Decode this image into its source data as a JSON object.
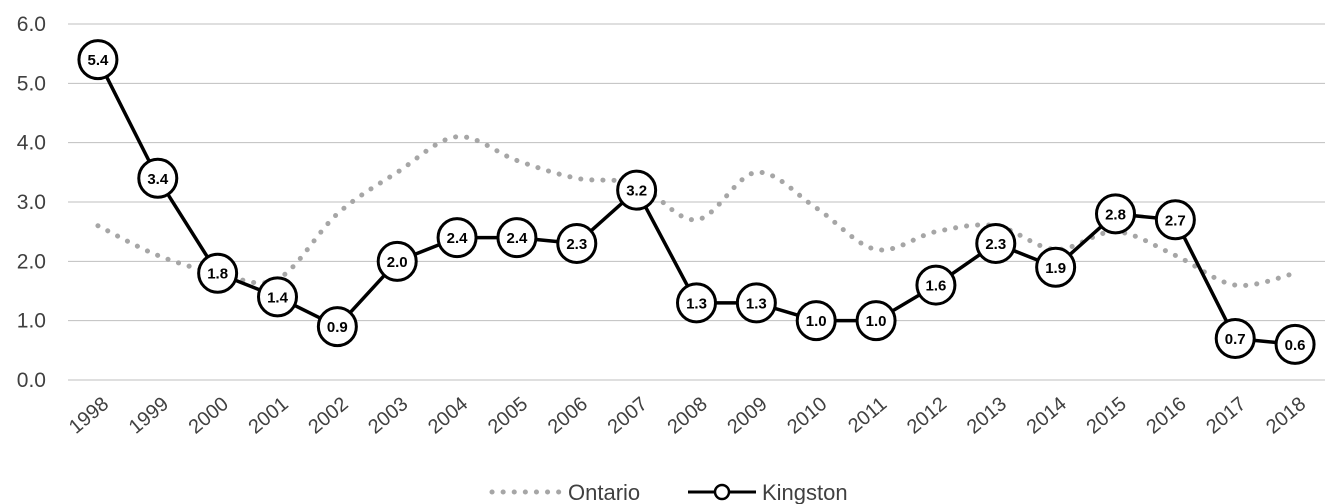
{
  "chart_data": {
    "type": "line",
    "x": [
      "1998",
      "1999",
      "2000",
      "2001",
      "2002",
      "2003",
      "2004",
      "2005",
      "2006",
      "2007",
      "2008",
      "2009",
      "2010",
      "2011",
      "2012",
      "2013",
      "2014",
      "2015",
      "2016",
      "2017",
      "2018"
    ],
    "ylim": [
      0,
      6
    ],
    "yticks": [
      "0.0",
      "1.0",
      "2.0",
      "3.0",
      "4.0",
      "5.0",
      "6.0"
    ],
    "grid": true,
    "legend_position": "bottom",
    "series": [
      {
        "name": "Ontario",
        "style": "dotted",
        "color": "#a6a6a6",
        "values": [
          2.6,
          2.1,
          1.8,
          1.7,
          2.8,
          3.5,
          4.1,
          3.7,
          3.4,
          3.3,
          2.7,
          3.5,
          2.9,
          2.2,
          2.5,
          2.6,
          2.2,
          2.5,
          2.1,
          1.6,
          1.8
        ]
      },
      {
        "name": "Kingston",
        "style": "solid-markers",
        "color": "#000000",
        "values": [
          5.4,
          3.4,
          1.8,
          1.4,
          0.9,
          2.0,
          2.4,
          2.4,
          2.3,
          3.2,
          1.3,
          1.3,
          1.0,
          1.0,
          1.6,
          2.3,
          1.9,
          2.8,
          2.7,
          0.7,
          0.6
        ],
        "labels": [
          "5.4",
          "3.4",
          "1.8",
          "1.4",
          "0.9",
          "2.0",
          "2.4",
          "2.4",
          "2.3",
          "3.2",
          "1.3",
          "1.3",
          "1.0",
          "1.0",
          "1.6",
          "2.3",
          "1.9",
          "2.8",
          "2.7",
          "0.7",
          "0.6"
        ]
      }
    ]
  }
}
